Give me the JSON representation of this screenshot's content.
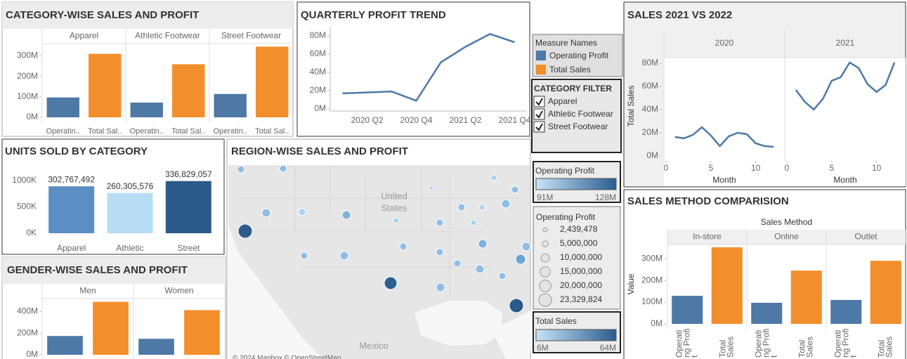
{
  "chart_data": [
    {
      "type": "bar",
      "title": "CATEGORY-WISE SALES AND PROFIT",
      "facets": [
        "Apparel",
        "Athletic Footwear",
        "Street Footwear"
      ],
      "bar_labels": [
        "Operatin..",
        "Total Sal.."
      ],
      "series": [
        {
          "name": "Operating Profit",
          "color": "#4e79a7",
          "values": [
            97000000,
            72000000,
            114000000
          ]
        },
        {
          "name": "Total Sales",
          "color": "#f28e2b",
          "values": [
            310000000,
            259000000,
            345000000
          ]
        }
      ],
      "ylim": [
        0,
        360000000
      ],
      "yticks": [
        {
          "value": 0,
          "label": "0M"
        },
        {
          "value": 100000000,
          "label": "100M"
        },
        {
          "value": 200000000,
          "label": "200M"
        },
        {
          "value": 300000000,
          "label": "300M"
        }
      ]
    },
    {
      "type": "line",
      "title": "QUARTERLY PROFIT TREND",
      "categories": [
        null,
        "2020 Q2",
        null,
        "2020 Q4",
        null,
        "2021 Q2",
        null,
        "2021 Q4"
      ],
      "values": [
        17000000,
        18000000,
        19000000,
        9000000,
        51000000,
        68000000,
        82000000,
        73000000
      ],
      "color": "#4e79a7",
      "ylim": [
        0,
        90000000
      ],
      "yticks": [
        {
          "value": 0,
          "label": "0M"
        },
        {
          "value": 20000000,
          "label": "20M"
        },
        {
          "value": 40000000,
          "label": "40M"
        },
        {
          "value": 60000000,
          "label": "60M"
        },
        {
          "value": 80000000,
          "label": "80M"
        }
      ]
    },
    {
      "type": "bar",
      "title": "UNITS SOLD BY CATEGORY",
      "categories": [
        "Apparel",
        "Athletic",
        "Street"
      ],
      "values": [
        302767492,
        260305576,
        336829057
      ],
      "value_labels": [
        "302,767,492",
        "260,305,576",
        "336,829,057"
      ],
      "colors": [
        "#5b8fc4",
        "#b8dcf3",
        "#2c5a89"
      ],
      "ylim": [
        0,
        340000000
      ],
      "axis_labels": [
        "1000K",
        "500K",
        "0K"
      ]
    },
    {
      "type": "bar",
      "title": "GENDER-WISE SALES AND PROFIT",
      "facets": [
        "Men",
        "Women"
      ],
      "series": [
        {
          "name": "Operating Profit",
          "color": "#4e79a7",
          "values": [
            174000000,
            148000000
          ]
        },
        {
          "name": "Total Sales",
          "color": "#f28e2b",
          "values": [
            490000000,
            413000000
          ]
        }
      ],
      "ylim": [
        0,
        520000000
      ],
      "yticks": [
        {
          "value": 0,
          "label": "0M"
        },
        {
          "value": 200000000,
          "label": "200M"
        },
        {
          "value": 400000000,
          "label": "400M"
        }
      ]
    },
    {
      "type": "line",
      "title": "SALES 2021 VS 2022",
      "y_label": "Total Sales",
      "x_label": "Month",
      "x": [
        1,
        2,
        3,
        4,
        5,
        6,
        7,
        8,
        9,
        10,
        11,
        12
      ],
      "series": [
        {
          "name": "2020",
          "color": "#4e79a7",
          "values": [
            16400000,
            15200000,
            18200000,
            24800000,
            17600000,
            8500000,
            17000000,
            20000000,
            18800000,
            10900000,
            8500000,
            7900000
          ]
        },
        {
          "name": "2021",
          "color": "#4e79a7",
          "values": [
            57000000,
            46700000,
            40000000,
            49000000,
            64800000,
            67900000,
            80600000,
            75800000,
            61800000,
            55200000,
            61200000,
            80600000
          ]
        }
      ],
      "xlim": [
        0,
        13
      ],
      "xticks": [
        0,
        5,
        10
      ],
      "ylim": [
        0,
        86000000
      ],
      "yticks": [
        {
          "value": 0,
          "label": "0M"
        },
        {
          "value": 20000000,
          "label": "20M"
        },
        {
          "value": 40000000,
          "label": "40M"
        },
        {
          "value": 60000000,
          "label": "60M"
        },
        {
          "value": 80000000,
          "label": "80M"
        }
      ]
    },
    {
      "type": "bar",
      "title": "SALES METHOD COMPARISION",
      "facet_title": "Sales Method",
      "facets": [
        "In-store",
        "Online",
        "Outlet"
      ],
      "bar_labels": [
        [
          "Operati",
          "ng Profi",
          "t"
        ],
        [
          "Total",
          "Sales"
        ]
      ],
      "y_label": "Value",
      "series": [
        {
          "name": "Operating Profit",
          "color": "#4e79a7",
          "values": [
            129000000,
            97000000,
            110000000
          ]
        },
        {
          "name": "Total Sales",
          "color": "#f28e2b",
          "values": [
            352000000,
            245000000,
            290000000
          ]
        }
      ],
      "ylim": [
        0,
        365000000
      ],
      "yticks": [
        {
          "value": 0,
          "label": "0M"
        },
        {
          "value": 100000000,
          "label": "100M"
        },
        {
          "value": 200000000,
          "label": "200M"
        },
        {
          "value": 300000000,
          "label": "300M"
        }
      ]
    }
  ],
  "map": {
    "title": "REGION-WISE SALES AND PROFIT",
    "labels": [
      "United",
      "States",
      "Mexico"
    ],
    "attribution": "© 2024 Mapbox © OpenStreetMap"
  },
  "legends": {
    "measure_title": "Measure Names",
    "filter_title": "CATEGORY FILTER",
    "color_legends": [
      {
        "title": "Operating Profit",
        "range": [
          {
            "value": 91000000,
            "label": "91M"
          },
          {
            "value": 128000000,
            "label": "128M"
          }
        ]
      },
      {
        "title": "Total Sales",
        "range": [
          {
            "value": 6000000,
            "label": "6M"
          },
          {
            "value": 64000000,
            "label": "64M"
          }
        ]
      }
    ],
    "size_legend": {
      "title": "Operating Profit",
      "sizes": [
        {
          "value": 2439478,
          "label": "2,439,478"
        },
        {
          "value": 5000000,
          "label": "5,000,000"
        },
        {
          "value": 10000000,
          "label": "10,000,000"
        },
        {
          "value": 15000000,
          "label": "15,000,000"
        },
        {
          "value": 20000000,
          "label": "20,000,000"
        },
        {
          "value": 23329824,
          "label": "23,329,824"
        }
      ]
    }
  }
}
